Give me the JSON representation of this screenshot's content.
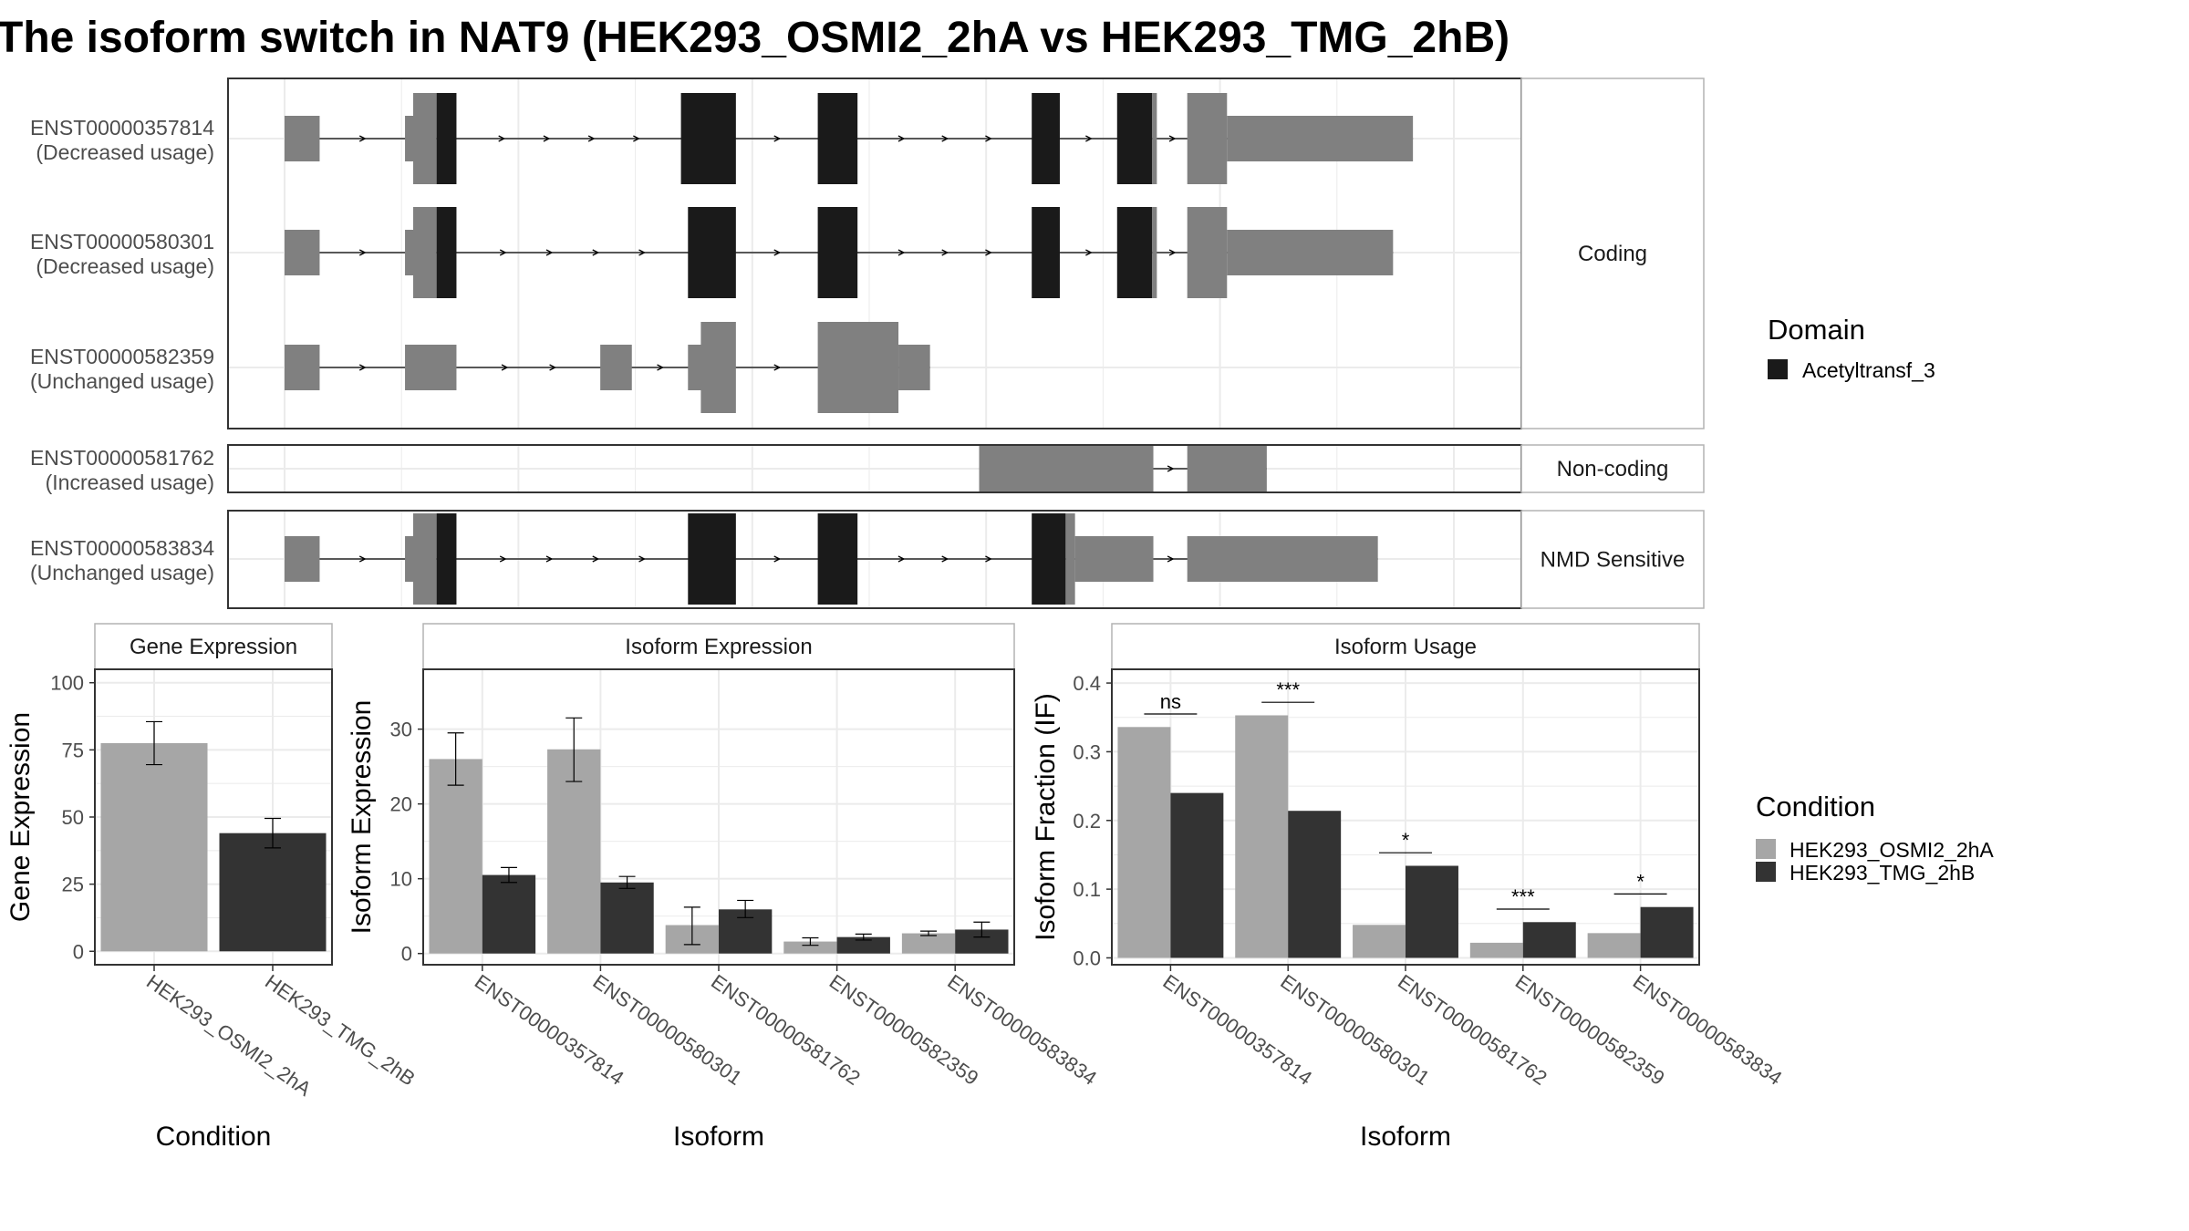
{
  "title": "The isoform switch in NAT9 (HEK293_OSMI2_2hA vs HEK293_TMG_2hB)",
  "colors": {
    "utr": "#808080",
    "domain": "#1a1a1a",
    "cond_a": "#a6a6a6",
    "cond_b": "#333333",
    "panel_border": "#333333",
    "strip_border": "#b3b3b3",
    "grid": "#ebebeb"
  },
  "structure": {
    "x_domain": [
      0,
      1000
    ],
    "groups": [
      {
        "label": "Coding",
        "isoforms": [
          {
            "id": "ENST00000357814",
            "usage": "(Decreased usage)",
            "line": [
              0,
              965
            ],
            "blocks": [
              {
                "s": 0,
                "e": 30,
                "kind": "utr",
                "h": "small"
              },
              {
                "s": 103,
                "e": 118,
                "kind": "utr",
                "h": "small"
              },
              {
                "s": 110,
                "e": 130,
                "kind": "utr",
                "h": "big"
              },
              {
                "s": 130,
                "e": 147,
                "kind": "domain",
                "h": "big"
              },
              {
                "s": 339,
                "e": 386,
                "kind": "domain",
                "h": "big"
              },
              {
                "s": 456,
                "e": 490,
                "kind": "domain",
                "h": "big"
              },
              {
                "s": 639,
                "e": 663,
                "kind": "domain",
                "h": "big"
              },
              {
                "s": 712,
                "e": 742,
                "kind": "domain",
                "h": "big"
              },
              {
                "s": 742,
                "e": 746,
                "kind": "utr",
                "h": "big"
              },
              {
                "s": 772,
                "e": 806,
                "kind": "utr",
                "h": "big"
              },
              {
                "s": 806,
                "e": 965,
                "kind": "utr",
                "h": "small"
              }
            ]
          },
          {
            "id": "ENST00000580301",
            "usage": "(Decreased usage)",
            "line": [
              0,
              948
            ],
            "blocks": [
              {
                "s": 0,
                "e": 30,
                "kind": "utr",
                "h": "small"
              },
              {
                "s": 103,
                "e": 118,
                "kind": "utr",
                "h": "small"
              },
              {
                "s": 110,
                "e": 130,
                "kind": "utr",
                "h": "big"
              },
              {
                "s": 130,
                "e": 147,
                "kind": "domain",
                "h": "big"
              },
              {
                "s": 345,
                "e": 386,
                "kind": "domain",
                "h": "big"
              },
              {
                "s": 456,
                "e": 490,
                "kind": "domain",
                "h": "big"
              },
              {
                "s": 639,
                "e": 663,
                "kind": "domain",
                "h": "big"
              },
              {
                "s": 712,
                "e": 742,
                "kind": "domain",
                "h": "big"
              },
              {
                "s": 742,
                "e": 746,
                "kind": "utr",
                "h": "big"
              },
              {
                "s": 772,
                "e": 806,
                "kind": "utr",
                "h": "big"
              },
              {
                "s": 806,
                "e": 948,
                "kind": "utr",
                "h": "small"
              }
            ]
          },
          {
            "id": "ENST00000582359",
            "usage": "(Unchanged usage)",
            "line": [
              0,
              552
            ],
            "blocks": [
              {
                "s": 0,
                "e": 30,
                "kind": "utr",
                "h": "small"
              },
              {
                "s": 103,
                "e": 147,
                "kind": "utr",
                "h": "small"
              },
              {
                "s": 270,
                "e": 297,
                "kind": "utr",
                "h": "small"
              },
              {
                "s": 345,
                "e": 360,
                "kind": "utr",
                "h": "small"
              },
              {
                "s": 356,
                "e": 386,
                "kind": "utr",
                "h": "big"
              },
              {
                "s": 456,
                "e": 525,
                "kind": "utr",
                "h": "big"
              },
              {
                "s": 525,
                "e": 552,
                "kind": "utr",
                "h": "small"
              }
            ]
          }
        ]
      },
      {
        "label": "Non-coding",
        "isoforms": [
          {
            "id": "ENST00000581762",
            "usage": "(Increased usage)",
            "line": [
              594,
              840
            ],
            "blocks": [
              {
                "s": 594,
                "e": 743,
                "kind": "utr",
                "h": "small"
              },
              {
                "s": 772,
                "e": 840,
                "kind": "utr",
                "h": "small"
              }
            ]
          }
        ]
      },
      {
        "label": "NMD Sensitive",
        "isoforms": [
          {
            "id": "ENST00000583834",
            "usage": "(Unchanged usage)",
            "line": [
              0,
              935
            ],
            "blocks": [
              {
                "s": 0,
                "e": 30,
                "kind": "utr",
                "h": "small"
              },
              {
                "s": 103,
                "e": 118,
                "kind": "utr",
                "h": "small"
              },
              {
                "s": 110,
                "e": 130,
                "kind": "utr",
                "h": "big"
              },
              {
                "s": 130,
                "e": 147,
                "kind": "domain",
                "h": "big"
              },
              {
                "s": 345,
                "e": 386,
                "kind": "domain",
                "h": "big"
              },
              {
                "s": 456,
                "e": 490,
                "kind": "domain",
                "h": "big"
              },
              {
                "s": 639,
                "e": 668,
                "kind": "domain",
                "h": "big"
              },
              {
                "s": 668,
                "e": 676,
                "kind": "utr",
                "h": "big"
              },
              {
                "s": 676,
                "e": 743,
                "kind": "utr",
                "h": "small"
              },
              {
                "s": 772,
                "e": 935,
                "kind": "utr",
                "h": "small"
              }
            ]
          }
        ]
      }
    ],
    "legend": {
      "title": "Domain",
      "items": [
        "Acetyltransf_3"
      ]
    }
  },
  "chart_data": [
    {
      "type": "bar",
      "panel": "Gene Expression",
      "categories": [
        "HEK293_OSMI2_2hA",
        "HEK293_TMG_2hB"
      ],
      "values": [
        77.5,
        44
      ],
      "errors": [
        [
          69.5,
          85.5
        ],
        [
          38.5,
          49.5
        ]
      ],
      "xlabel": "Condition",
      "ylabel": "Gene Expression",
      "ylim": [
        -5,
        105
      ],
      "yticks": [
        0,
        25,
        50,
        75,
        100
      ],
      "grid": true
    },
    {
      "type": "bar",
      "panel": "Isoform Expression",
      "categories": [
        "ENST00000357814",
        "ENST00000580301",
        "ENST00000581762",
        "ENST00000582359",
        "ENST00000583834"
      ],
      "series": [
        {
          "name": "HEK293_OSMI2_2hA",
          "values": [
            26,
            27.3,
            3.8,
            1.6,
            2.7
          ],
          "errors": [
            [
              22.5,
              29.5
            ],
            [
              23,
              31.5
            ],
            [
              1.2,
              6.2
            ],
            [
              1.1,
              2.1
            ],
            [
              2.4,
              3
            ]
          ]
        },
        {
          "name": "HEK293_TMG_2hB",
          "values": [
            10.5,
            9.5,
            5.9,
            2.2,
            3.2
          ],
          "errors": [
            [
              9.5,
              11.5
            ],
            [
              8.7,
              10.3
            ],
            [
              4.8,
              7.1
            ],
            [
              1.8,
              2.6
            ],
            [
              2.2,
              4.2
            ]
          ]
        }
      ],
      "xlabel": "Isoform",
      "ylabel": "Isoform Expression",
      "ylim": [
        -1.5,
        38
      ],
      "yticks": [
        0,
        10,
        20,
        30
      ],
      "grid": true
    },
    {
      "type": "bar",
      "panel": "Isoform Usage",
      "categories": [
        "ENST00000357814",
        "ENST00000580301",
        "ENST00000581762",
        "ENST00000582359",
        "ENST00000583834"
      ],
      "series": [
        {
          "name": "HEK293_OSMI2_2hA",
          "values": [
            0.336,
            0.353,
            0.048,
            0.022,
            0.036
          ]
        },
        {
          "name": "HEK293_TMG_2hB",
          "values": [
            0.24,
            0.214,
            0.134,
            0.052,
            0.074
          ]
        }
      ],
      "significance": [
        "ns",
        "***",
        "*",
        "***",
        "*"
      ],
      "sig_levels": [
        0.355,
        0.372,
        0.153,
        0.071,
        0.093
      ],
      "xlabel": "Isoform",
      "ylabel": "Isoform Fraction (IF)",
      "ylim": [
        -0.01,
        0.42
      ],
      "yticks": [
        0.0,
        0.1,
        0.2,
        0.3,
        0.4
      ],
      "grid": true
    }
  ],
  "condition_legend": {
    "title": "Condition",
    "items": [
      "HEK293_OSMI2_2hA",
      "HEK293_TMG_2hB"
    ]
  }
}
